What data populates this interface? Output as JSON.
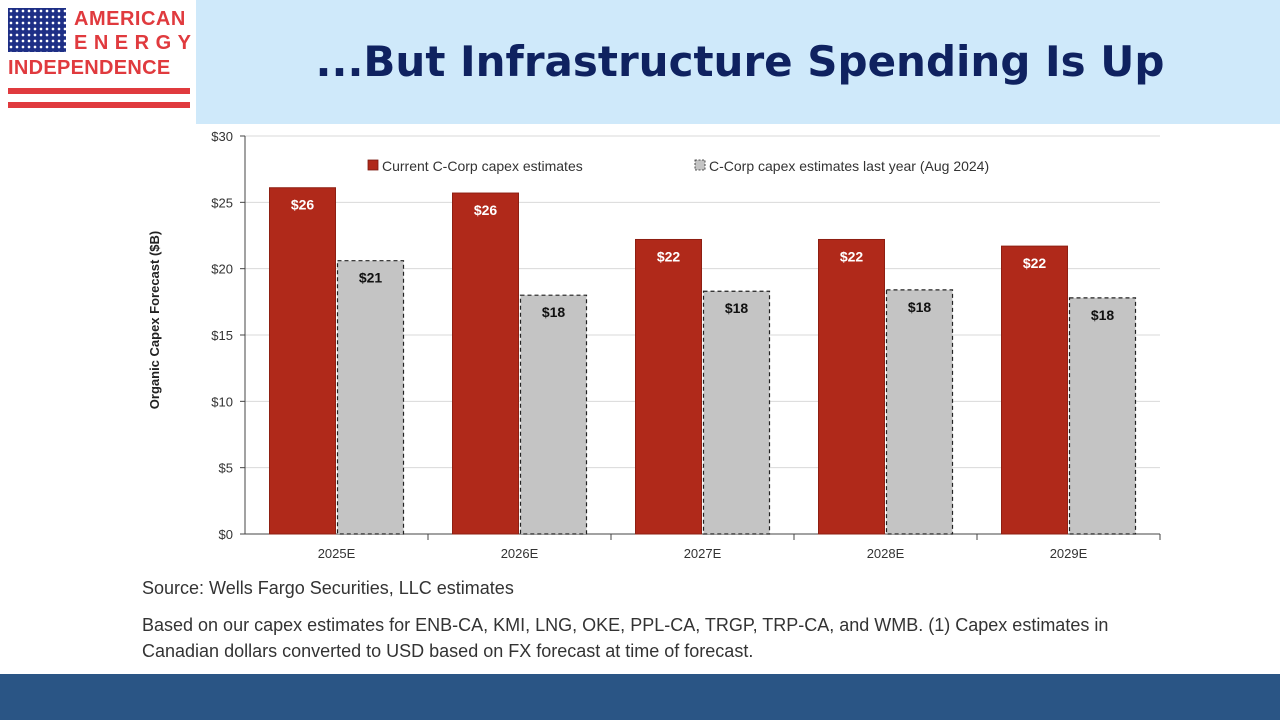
{
  "title": "...But Infrastructure Spending Is Up",
  "logo": {
    "line1": "AMERICAN",
    "line2": "ENERGY",
    "line3": "INDEPENDENCE"
  },
  "colors": {
    "current": "#b0291a",
    "last_year": "#c4c4c4",
    "header_band": "#cfe9fa",
    "title": "#0f2260",
    "footer_band": "#2a5585"
  },
  "chart_data": {
    "type": "bar",
    "categories": [
      "2025E",
      "2026E",
      "2027E",
      "2028E",
      "2029E"
    ],
    "series": [
      {
        "name": "Current C-Corp capex estimates",
        "values": [
          26.1,
          25.7,
          22.2,
          22.2,
          21.7
        ],
        "labels": [
          "$26",
          "$26",
          "$22",
          "$22",
          "$22"
        ]
      },
      {
        "name": "C-Corp capex estimates last year (Aug 2024)",
        "values": [
          20.6,
          18.0,
          18.3,
          18.4,
          17.8
        ],
        "labels": [
          "$21",
          "$18",
          "$18",
          "$18",
          "$18"
        ]
      }
    ],
    "ylabel": "Organic Capex Forecast ($B)",
    "ylim": [
      0,
      30
    ],
    "yticks": [
      0,
      5,
      10,
      15,
      20,
      25,
      30
    ],
    "ytick_labels": [
      "$0",
      "$5",
      "$10",
      "$15",
      "$20",
      "$25",
      "$30"
    ],
    "grid": true,
    "legend": "top"
  },
  "source": "Source: Wells Fargo Securities, LLC estimates",
  "note": "Based on our capex estimates for ENB-CA, KMI, LNG, OKE, PPL-CA, TRGP, TRP-CA, and WMB. (1) Capex estimates in Canadian dollars converted to USD based on FX forecast at time of forecast."
}
